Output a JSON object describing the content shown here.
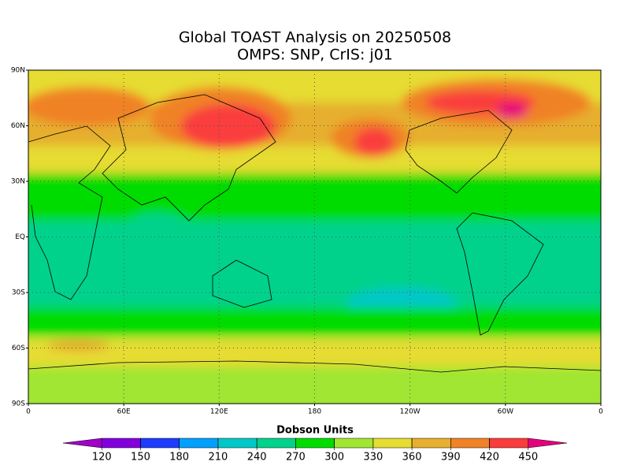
{
  "header": {
    "title": "Global TOAST Analysis on 20250508",
    "subtitle": "OMPS: SNP, CrIS: j01"
  },
  "map": {
    "lat_labels": [
      "90N",
      "60N",
      "30N",
      "EQ",
      "30S",
      "60S",
      "90S"
    ],
    "lon_labels": [
      "0",
      "60E",
      "120E",
      "180",
      "120W",
      "60W",
      "0"
    ],
    "grid": true
  },
  "colorbar": {
    "title": "Dobson Units",
    "ticks": [
      120,
      150,
      180,
      210,
      240,
      270,
      300,
      330,
      360,
      390,
      420,
      450
    ],
    "colors": [
      "#a000c8",
      "#8200dc",
      "#1e3cff",
      "#00a0ff",
      "#00c8c8",
      "#00d28c",
      "#00dc00",
      "#a0e632",
      "#e6dc32",
      "#e6af2d",
      "#f08228",
      "#fa3c3c",
      "#e6007d"
    ]
  }
}
